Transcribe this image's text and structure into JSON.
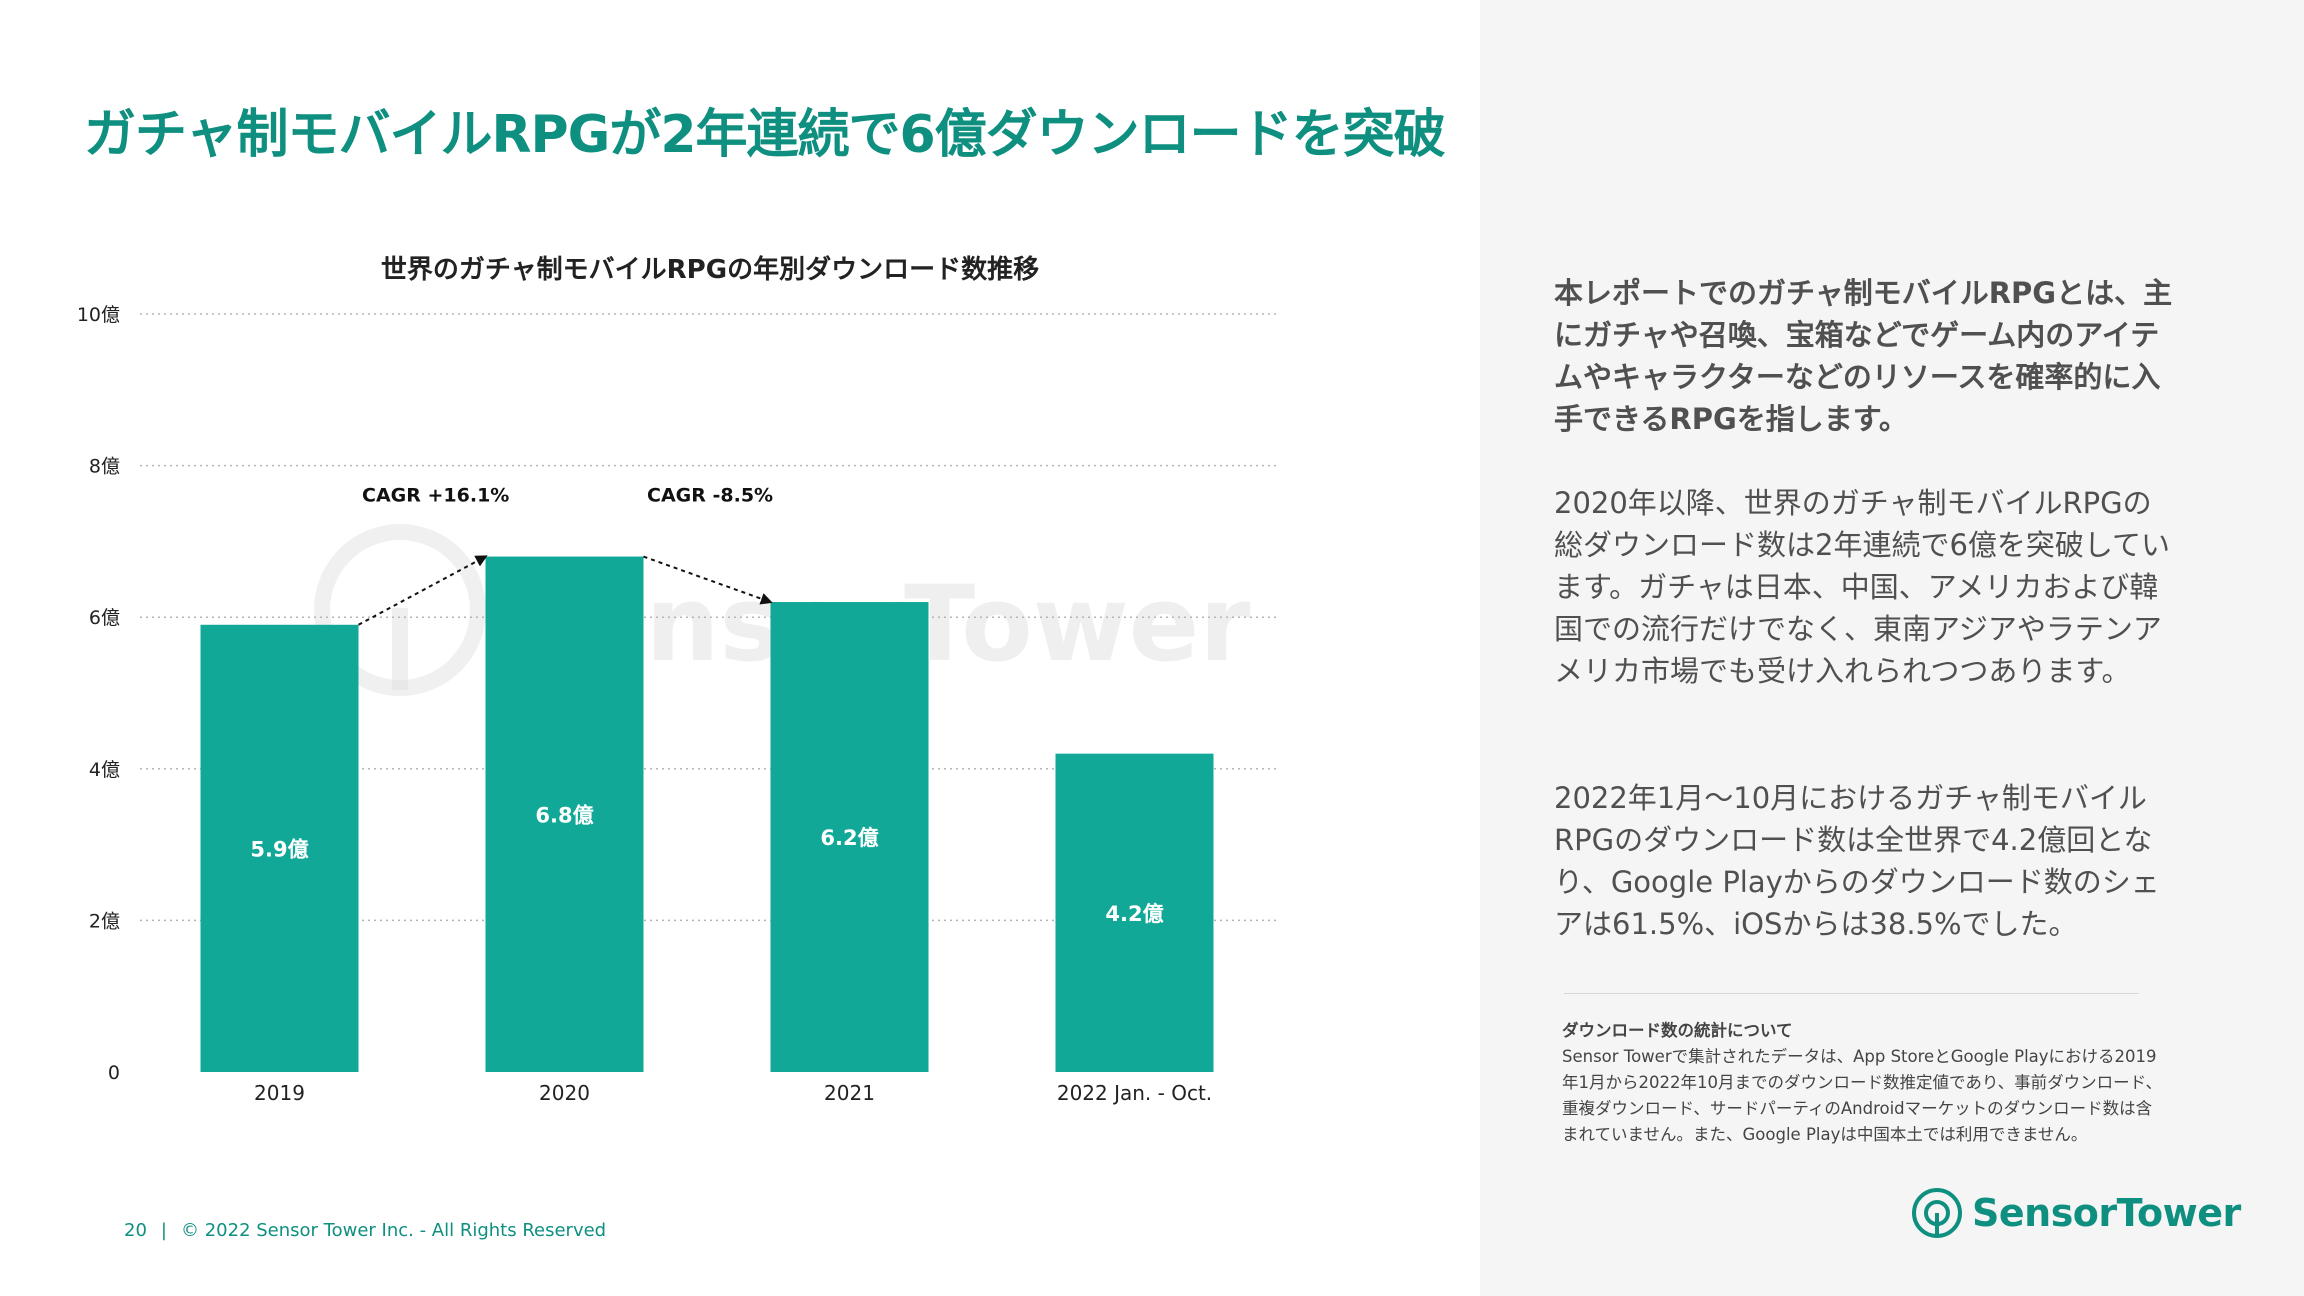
{
  "page": {
    "title": "ガチャ制モバイルRPGが2年連続で6億ダウンロードを突破",
    "page_number": "20",
    "copyright": "© 2022 Sensor Tower Inc. - All Rights Reserved"
  },
  "chart_data": {
    "type": "bar",
    "title": "世界のガチャ制モバイルRPGの年別ダウンロード数推移",
    "categories": [
      "2019",
      "2020",
      "2021",
      "2022 Jan. - Oct."
    ],
    "values": [
      5.9,
      6.8,
      6.2,
      4.2
    ],
    "value_labels": [
      "5.9億",
      "6.8億",
      "6.2億",
      "4.2億"
    ],
    "unit": "億",
    "ylim": [
      0,
      10
    ],
    "yticks": [
      0,
      2,
      4,
      6,
      8,
      10
    ],
    "ytick_labels": [
      "0",
      "2億",
      "4億",
      "6億",
      "8億",
      "10億"
    ],
    "grid": true,
    "bar_color": "#12a898",
    "annotations": [
      {
        "text": "CAGR +16.1%",
        "from": 0,
        "to": 1
      },
      {
        "text": "CAGR -8.5%",
        "from": 1,
        "to": 2
      }
    ],
    "watermark": "SensorTower"
  },
  "sidebar": {
    "intro": "本レポートでのガチャ制モバイルRPGとは、主にガチャや召喚、宝箱などでゲーム内のアイテムやキャラクターなどのリソースを確率的に入手できるRPGを指します。",
    "paragraph1": "2020年以降、世界のガチャ制モバイルRPGの総ダウンロード数は2年連続で6億を突破しています。ガチャは日本、中国、アメリカおよび韓国での流行だけでなく、東南アジアやラテンアメリカ市場でも受け入れられつつあります。",
    "paragraph2": "2022年1月〜10月におけるガチャ制モバイルRPGのダウンロード数は全世界で4.2億回となり、Google Playからのダウンロード数のシェアは61.5%、iOSからは38.5%でした。",
    "note_title": "ダウンロード数の統計について",
    "note_body": "Sensor Towerで集計されたデータは、App StoreとGoogle Playにおける2019年1月から2022年10月までのダウンロード数推定値であり、事前ダウンロード、重複ダウンロード、サードパーティのAndroidマーケットのダウンロード数は含まれていません。また、Google Playは中国本土では利用できません。"
  },
  "logo": {
    "text": "SensorTower",
    "icon": "sensor-tower-logo-icon",
    "color": "#0e8f80"
  }
}
